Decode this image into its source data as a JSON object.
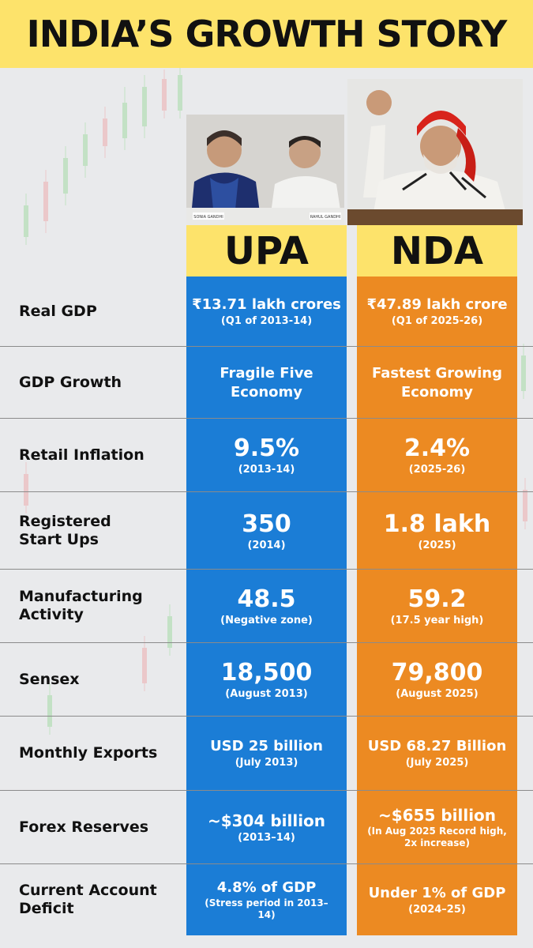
{
  "title": "INDIA’S GROWTH STORY",
  "columns": {
    "upa": "UPA",
    "nda": "NDA"
  },
  "photo_captions": {
    "left": "SONIA GANDHI",
    "right": "RAHUL GANDHI"
  },
  "rows": [
    {
      "label": "Real GDP",
      "upa_main": "₹13.71 lakh crores",
      "upa_sub": "(Q1 of 2013-14)",
      "nda_main": "₹47.89 lakh crore",
      "nda_sub": "(Q1 of 2025-26)"
    },
    {
      "label": "GDP Growth",
      "upa_main": "Fragile Five Economy",
      "upa_sub": "",
      "nda_main": "Fastest Growing Economy",
      "nda_sub": ""
    },
    {
      "label": "Retail Inflation",
      "upa_main": "9.5%",
      "upa_sub": "(2013-14)",
      "nda_main": "2.4%",
      "nda_sub": "(2025-26)"
    },
    {
      "label": "Registered Start Ups",
      "upa_main": "350",
      "upa_sub": "(2014)",
      "nda_main": "1.8 lakh",
      "nda_sub": "(2025)"
    },
    {
      "label": "Manufacturing Activity",
      "upa_main": "48.5",
      "upa_sub": "(Negative zone)",
      "nda_main": "59.2",
      "nda_sub": "(17.5 year high)"
    },
    {
      "label": "Sensex",
      "upa_main": "18,500",
      "upa_sub": "(August 2013)",
      "nda_main": "79,800",
      "nda_sub": "(August 2025)"
    },
    {
      "label": "Monthly Exports",
      "upa_main": "USD 25 billion",
      "upa_sub": "(July 2013)",
      "nda_main": "USD 68.27 Billion",
      "nda_sub": "(July 2025)"
    },
    {
      "label": "Forex Reserves",
      "upa_main": "~$304 billion",
      "upa_sub": "(2013–14)",
      "nda_main": "~$655 billion",
      "nda_sub": "(In Aug 2025 Record high, 2x increase)"
    },
    {
      "label": "Current Account Deficit",
      "upa_main": "4.8% of GDP",
      "upa_sub": "(Stress period in 2013–14)",
      "nda_main": "Under 1% of GDP",
      "nda_sub": "(2024–25)"
    }
  ],
  "colors": {
    "header_yellow": "#fde36b",
    "upa_blue": "#1b7dd6",
    "nda_orange": "#ec8a22",
    "background": "#e9eaec"
  }
}
